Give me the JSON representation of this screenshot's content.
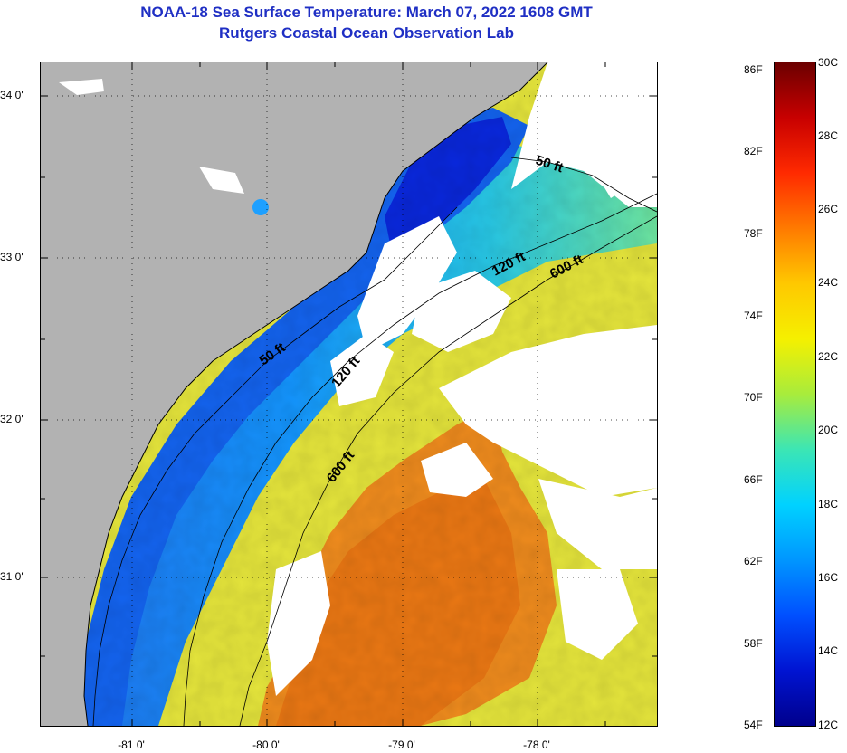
{
  "title": {
    "line1": "NOAA-18 Sea Surface Temperature:  March 07, 2022 1608 GMT",
    "line2": "Rutgers Coastal Ocean Observation Lab"
  },
  "map": {
    "lat_labels": [
      "34 0'",
      "33 0'",
      "32 0'",
      "31 0'"
    ],
    "lon_labels": [
      "-81 0'",
      "-80 0'",
      "-79 0'",
      "-78 0'"
    ],
    "isobath_labels": [
      "50 ft",
      "120 ft",
      "600 ft",
      "50 ft",
      "120 ft",
      "600 ft"
    ],
    "colors": {
      "land": "#b2b2b2",
      "cloud": "#ffffff",
      "coastline": "#000000"
    }
  },
  "colorbar": {
    "fahrenheit_labels": [
      "86F",
      "82F",
      "78F",
      "74F",
      "70F",
      "66F",
      "62F",
      "58F",
      "54F"
    ],
    "celsius_labels": [
      "30C",
      "28C",
      "26C",
      "24C",
      "22C",
      "20C",
      "18C",
      "16C",
      "14C",
      "12C"
    ],
    "gradient_stops": [
      "#6b0000",
      "#c80000",
      "#ff2a00",
      "#ff7a00",
      "#ffc800",
      "#f5f000",
      "#a8ec3c",
      "#3ce6b4",
      "#00d2ff",
      "#0096ff",
      "#0050ff",
      "#0014d2",
      "#00008c"
    ]
  }
}
